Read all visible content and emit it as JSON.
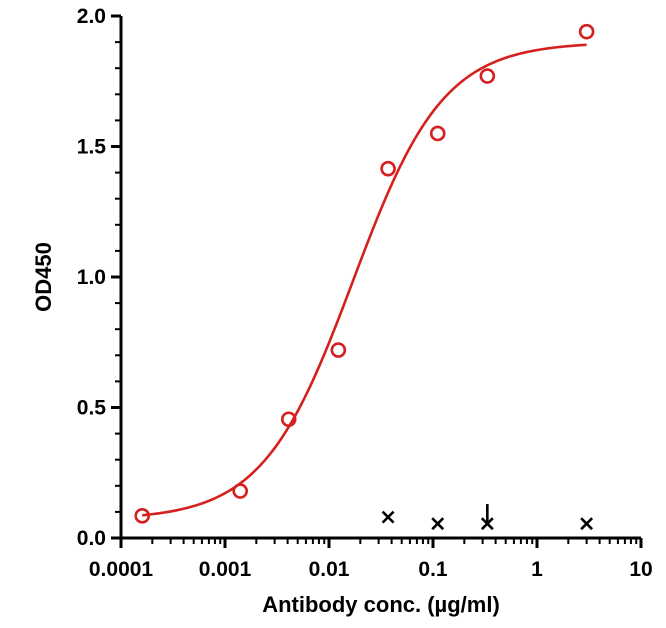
{
  "chart_data": {
    "type": "scatter",
    "xscale": "log",
    "xlabel": "Antibody conc. (µg/ml)",
    "ylabel": "OD450",
    "xlim": [
      0.0001,
      10
    ],
    "ylim": [
      0,
      2.0
    ],
    "x_ticks": [
      0.0001,
      0.001,
      0.01,
      0.1,
      1,
      10
    ],
    "x_tick_labels": [
      "0.0001",
      "0.001",
      "0.01",
      "0.1",
      "1",
      "10"
    ],
    "y_ticks": [
      0,
      0.5,
      1.0,
      1.5,
      2.0
    ],
    "y_tick_labels": [
      "0.0",
      "0.5",
      "1.0",
      "1.5",
      "2.0"
    ],
    "grid": false,
    "series": [
      {
        "marker": "circle-open",
        "color": "#d62020",
        "points": [
          {
            "x": 0.00016,
            "y": 0.085
          },
          {
            "x": 0.0014,
            "y": 0.18
          },
          {
            "x": 0.0041,
            "y": 0.455
          },
          {
            "x": 0.0123,
            "y": 0.72
          },
          {
            "x": 0.037,
            "y": 1.415
          },
          {
            "x": 0.111,
            "y": 1.55
          },
          {
            "x": 0.333,
            "y": 1.77
          },
          {
            "x": 3.0,
            "y": 1.94
          }
        ],
        "fit": {
          "type": "4PL",
          "bottom": 0.07,
          "top": 1.9,
          "ec50": 0.017,
          "hill": 1.0
        }
      },
      {
        "marker": "x",
        "color": "#000000",
        "points": [
          {
            "x": 0.037,
            "y": 0.08
          },
          {
            "x": 0.111,
            "y": 0.055
          },
          {
            "x": 0.333,
            "y": 0.055
          },
          {
            "x": 3.0,
            "y": 0.055
          }
        ],
        "error_bars": [
          {
            "x": 0.333,
            "high": 0.13
          }
        ]
      }
    ]
  }
}
